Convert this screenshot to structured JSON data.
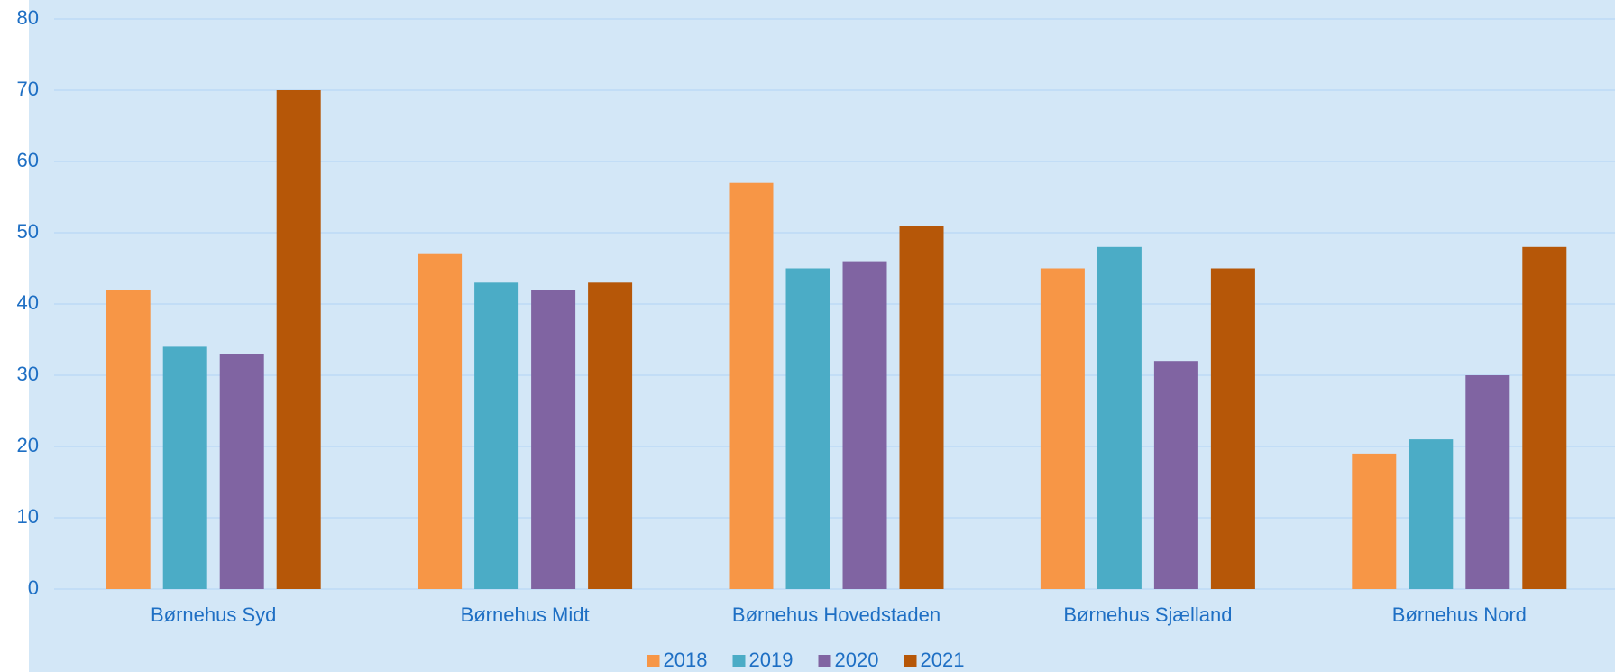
{
  "chart_data": {
    "type": "bar",
    "categories": [
      "Børnehus Syd",
      "Børnehus Midt",
      "Børnehus Hovedstaden",
      "Børnehus Sjælland",
      "Børnehus Nord"
    ],
    "series": [
      {
        "name": "2018",
        "color": "#f79646",
        "values": [
          42,
          47,
          57,
          45,
          19
        ]
      },
      {
        "name": "2019",
        "color": "#4bacc6",
        "values": [
          34,
          43,
          45,
          48,
          21
        ]
      },
      {
        "name": "2020",
        "color": "#8064a2",
        "values": [
          33,
          42,
          46,
          32,
          30
        ]
      },
      {
        "name": "2021",
        "color": "#b65708",
        "values": [
          70,
          43,
          51,
          45,
          48
        ]
      }
    ],
    "ylim": [
      0,
      80
    ],
    "yticks": [
      0,
      10,
      20,
      30,
      40,
      50,
      60,
      70,
      80
    ],
    "grid": true,
    "legend": "bottom"
  }
}
